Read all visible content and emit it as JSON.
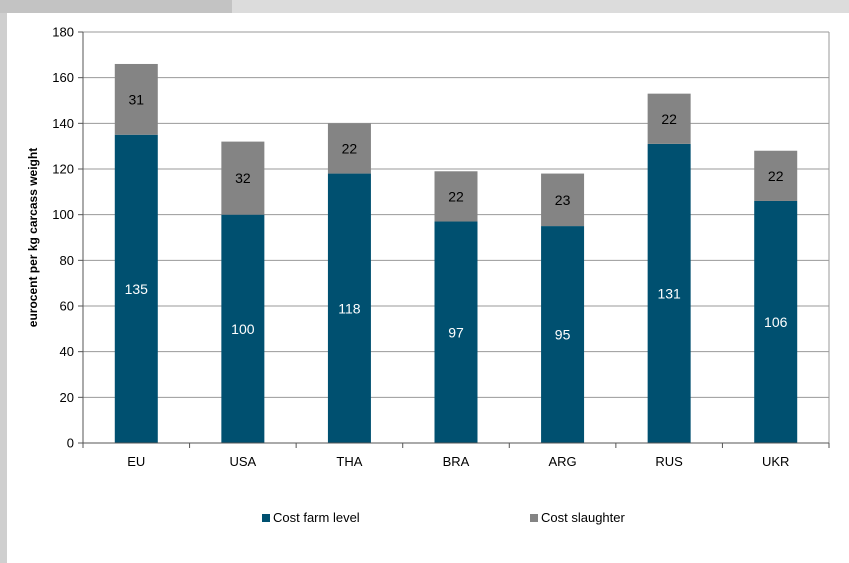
{
  "chart_data": {
    "type": "bar",
    "stacked": true,
    "categories": [
      "EU",
      "USA",
      "THA",
      "BRA",
      "ARG",
      "RUS",
      "UKR"
    ],
    "series": [
      {
        "name": "Cost farm level",
        "values": [
          135,
          100,
          118,
          97,
          95,
          131,
          106
        ],
        "color": "#005070",
        "label_color": "#ffffff"
      },
      {
        "name": "Cost slaughter",
        "values": [
          31,
          32,
          22,
          22,
          23,
          22,
          22
        ],
        "color": "#848484",
        "label_color": "#000000"
      }
    ],
    "title": "",
    "xlabel": "",
    "ylabel": "eurocent per kg carcass weight",
    "ylim": [
      0,
      180
    ],
    "yticks": [
      0,
      20,
      40,
      60,
      80,
      100,
      120,
      140,
      160,
      180
    ],
    "grid": true,
    "legend": "bottom"
  }
}
